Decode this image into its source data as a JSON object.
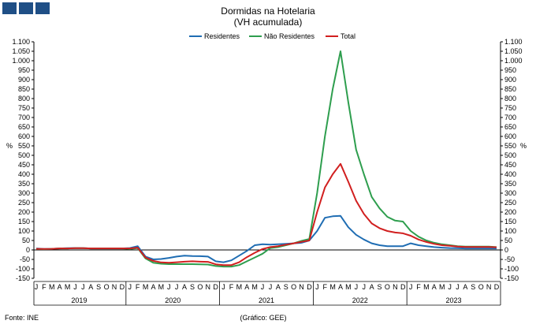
{
  "chart_data": {
    "type": "line",
    "title": "Dormidas na Hotelaria",
    "subtitle": "(VH acumulada)",
    "ylabel_left": "%",
    "ylabel_right": "%",
    "ylim": [
      -150,
      1100
    ],
    "yticks": [
      -150,
      -100,
      -50,
      0,
      50,
      100,
      150,
      200,
      250,
      300,
      350,
      400,
      450,
      500,
      550,
      600,
      650,
      700,
      750,
      800,
      850,
      900,
      950,
      1000,
      1050,
      1100
    ],
    "ytick_labels": [
      "-150",
      "-100",
      "-50",
      "0",
      "50",
      "100",
      "150",
      "200",
      "250",
      "300",
      "350",
      "400",
      "450",
      "500",
      "550",
      "600",
      "650",
      "700",
      "750",
      "800",
      "850",
      "900",
      "950",
      "1.000",
      "1.050",
      "1.100"
    ],
    "month_labels": [
      "J",
      "F",
      "M",
      "A",
      "M",
      "J",
      "J",
      "A",
      "S",
      "O",
      "N",
      "D"
    ],
    "years": [
      "2019",
      "2020",
      "2021",
      "2022",
      "2023"
    ],
    "legend_position": "top-center",
    "grid": false,
    "series": [
      {
        "name": "Residentes",
        "color": "#1f6db3",
        "values": [
          8,
          5,
          6,
          8,
          9,
          10,
          9,
          8,
          8,
          8,
          8,
          8,
          10,
          20,
          -35,
          -50,
          -48,
          -42,
          -35,
          -30,
          -32,
          -33,
          -35,
          -60,
          -65,
          -55,
          -30,
          -5,
          25,
          30,
          28,
          30,
          32,
          35,
          38,
          50,
          100,
          170,
          178,
          180,
          120,
          80,
          55,
          35,
          25,
          20,
          20,
          20,
          35,
          25,
          20,
          15,
          12,
          10,
          9,
          8,
          8,
          8,
          8,
          8
        ]
      },
      {
        "name": "Não Residentes",
        "color": "#2e9e4e",
        "values": [
          5,
          4,
          6,
          8,
          8,
          9,
          9,
          8,
          8,
          8,
          8,
          8,
          5,
          10,
          -45,
          -68,
          -73,
          -75,
          -75,
          -75,
          -75,
          -76,
          -77,
          -85,
          -88,
          -88,
          -80,
          -60,
          -40,
          -20,
          10,
          15,
          25,
          35,
          48,
          58,
          300,
          600,
          850,
          1050,
          780,
          530,
          400,
          280,
          220,
          175,
          155,
          150,
          100,
          70,
          50,
          38,
          30,
          25,
          20,
          18,
          18,
          18,
          18,
          15
        ]
      },
      {
        "name": "Total",
        "color": "#d11f1f",
        "values": [
          6,
          5,
          6,
          8,
          8,
          9,
          9,
          8,
          8,
          8,
          8,
          8,
          8,
          12,
          -40,
          -58,
          -66,
          -68,
          -65,
          -62,
          -60,
          -62,
          -63,
          -76,
          -80,
          -80,
          -65,
          -38,
          -15,
          5,
          15,
          20,
          28,
          35,
          43,
          50,
          200,
          330,
          400,
          455,
          360,
          260,
          190,
          140,
          115,
          100,
          92,
          88,
          75,
          55,
          42,
          32,
          25,
          22,
          18,
          16,
          16,
          16,
          16,
          14
        ]
      }
    ],
    "source": "Fonte: INE",
    "credit": "(Gráfico: GEE)"
  }
}
